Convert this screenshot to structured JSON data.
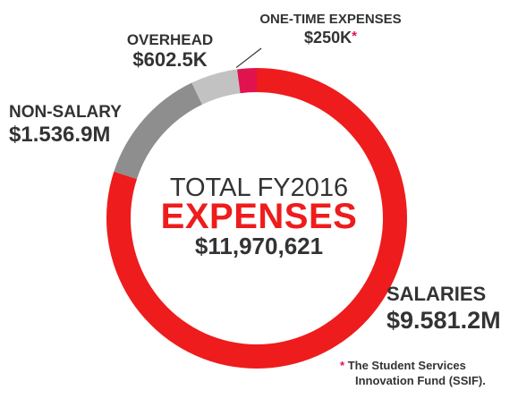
{
  "chart_data": {
    "type": "pie",
    "variant": "donut",
    "title": {
      "line1_a": "TOTAL",
      "line1_b": "FY2016",
      "line2": "EXPENSES",
      "total": "$11,970,621"
    },
    "slices": [
      {
        "name": "SALARIES",
        "value_label": "$9.581.2M",
        "value": 9581.2,
        "color": "#ee1c1c"
      },
      {
        "name": "NON-SALARY",
        "value_label": "$1.536.9M",
        "value": 1536.9,
        "color": "#8e8e8e"
      },
      {
        "name": "OVERHEAD",
        "value_label": "$602.5K",
        "value": 602.5,
        "color": "#c2c2c2"
      },
      {
        "name": "ONE-TIME EXPENSES",
        "value_label": "$250K",
        "value": 250,
        "color": "#e0134f"
      }
    ],
    "marker": "*",
    "footnote": {
      "line1": "The Student Services",
      "line2": "Innovation Fund (SSIF)."
    },
    "colors": {
      "text": "#333333",
      "accent_red": "#ee1c1c",
      "marker_pink": "#e0134f",
      "leader_line": "#333333"
    }
  }
}
